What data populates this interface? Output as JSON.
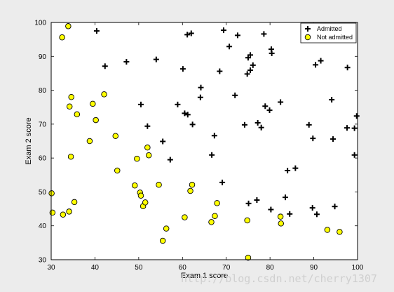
{
  "chart_data": {
    "type": "scatter",
    "title": "",
    "xlabel": "Exam 1 score",
    "ylabel": "Exam 2 score",
    "xlim": [
      30,
      100
    ],
    "ylim": [
      30,
      100
    ],
    "xticks": [
      "30",
      "40",
      "50",
      "60",
      "70",
      "80",
      "90",
      "100"
    ],
    "yticks": [
      "30",
      "40",
      "50",
      "60",
      "70",
      "80",
      "90",
      "100"
    ],
    "grid": false,
    "legend_position": "top-right",
    "series": [
      {
        "name": "Admitted",
        "marker": "plus",
        "color": "#000000",
        "points": [
          [
            40.4,
            97.5
          ],
          [
            42.3,
            87.1
          ],
          [
            47.2,
            88.4
          ],
          [
            50.5,
            75.8
          ],
          [
            52.0,
            69.4
          ],
          [
            54.0,
            89.1
          ],
          [
            55.5,
            64.9
          ],
          [
            57.2,
            59.5
          ],
          [
            58.9,
            75.8
          ],
          [
            60.1,
            86.3
          ],
          [
            60.5,
            73.2
          ],
          [
            61.2,
            72.8
          ],
          [
            61.1,
            96.4
          ],
          [
            62.0,
            96.8
          ],
          [
            62.3,
            69.9
          ],
          [
            64.1,
            77.9
          ],
          [
            64.2,
            80.8
          ],
          [
            66.7,
            60.9
          ],
          [
            67.3,
            66.6
          ],
          [
            68.5,
            85.6
          ],
          [
            69.1,
            52.8
          ],
          [
            69.4,
            97.7
          ],
          [
            70.7,
            92.9
          ],
          [
            72.0,
            78.5
          ],
          [
            72.6,
            96.2
          ],
          [
            74.2,
            69.8
          ],
          [
            74.8,
            84.8
          ],
          [
            75.0,
            89.6
          ],
          [
            75.1,
            46.6
          ],
          [
            75.5,
            85.9
          ],
          [
            75.5,
            90.4
          ],
          [
            76.1,
            87.4
          ],
          [
            77.0,
            47.6
          ],
          [
            77.2,
            70.4
          ],
          [
            78.0,
            69.0
          ],
          [
            78.6,
            96.6
          ],
          [
            78.9,
            75.3
          ],
          [
            79.9,
            74.1
          ],
          [
            80.2,
            44.8
          ],
          [
            80.3,
            92.1
          ],
          [
            80.4,
            90.9
          ],
          [
            82.4,
            76.5
          ],
          [
            83.5,
            48.4
          ],
          [
            84.0,
            56.3
          ],
          [
            84.5,
            43.5
          ],
          [
            85.8,
            57.0
          ],
          [
            88.9,
            69.8
          ],
          [
            89.7,
            45.3
          ],
          [
            89.8,
            65.8
          ],
          [
            90.4,
            87.5
          ],
          [
            90.7,
            43.4
          ],
          [
            91.6,
            88.7
          ],
          [
            94.1,
            77.2
          ],
          [
            94.4,
            65.6
          ],
          [
            94.8,
            45.7
          ],
          [
            97.6,
            68.9
          ],
          [
            97.7,
            86.7
          ],
          [
            99.3,
            60.9
          ],
          [
            99.3,
            68.8
          ],
          [
            99.8,
            72.4
          ]
        ]
      },
      {
        "name": "Not admitted",
        "marker": "circle",
        "color": "#ffff00",
        "points": [
          [
            30.1,
            49.6
          ],
          [
            30.3,
            43.9
          ],
          [
            32.5,
            95.6
          ],
          [
            32.7,
            43.3
          ],
          [
            33.9,
            98.9
          ],
          [
            34.1,
            44.2
          ],
          [
            34.2,
            75.2
          ],
          [
            34.5,
            60.4
          ],
          [
            34.6,
            78.0
          ],
          [
            35.3,
            47.0
          ],
          [
            35.9,
            72.9
          ],
          [
            38.8,
            65.0
          ],
          [
            39.5,
            76.0
          ],
          [
            40.2,
            71.2
          ],
          [
            42.1,
            78.8
          ],
          [
            44.7,
            66.5
          ],
          [
            45.1,
            56.3
          ],
          [
            49.1,
            51.9
          ],
          [
            49.6,
            59.8
          ],
          [
            50.3,
            49.8
          ],
          [
            50.5,
            48.9
          ],
          [
            51.0,
            45.8
          ],
          [
            51.5,
            46.9
          ],
          [
            52.0,
            63.1
          ],
          [
            52.3,
            60.8
          ],
          [
            54.6,
            52.1
          ],
          [
            55.5,
            35.6
          ],
          [
            56.3,
            39.2
          ],
          [
            60.5,
            42.5
          ],
          [
            61.8,
            50.3
          ],
          [
            62.2,
            52.1
          ],
          [
            66.6,
            41.1
          ],
          [
            67.4,
            42.9
          ],
          [
            67.9,
            46.7
          ],
          [
            74.8,
            41.6
          ],
          [
            75.0,
            30.6
          ],
          [
            82.4,
            42.7
          ],
          [
            82.5,
            40.7
          ],
          [
            93.1,
            38.8
          ],
          [
            95.9,
            38.2
          ]
        ]
      }
    ]
  },
  "watermark": "http://blog.csdn.net/cherry1307"
}
